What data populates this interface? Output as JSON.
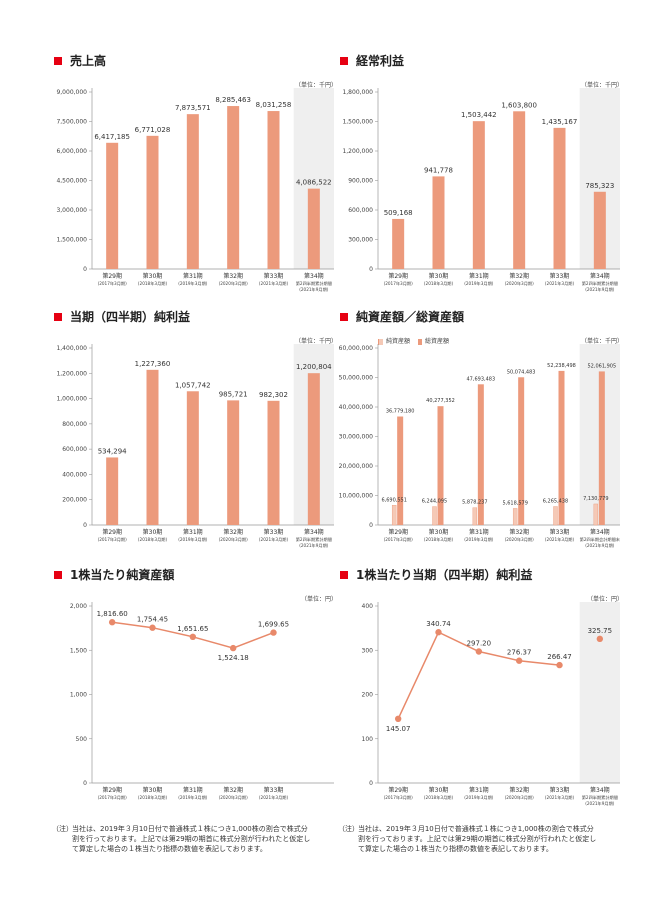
{
  "colors": {
    "accent": "#e60012",
    "bar": "#ec9a7c",
    "bar_light": "#f5c9b6",
    "line": "#e8896a",
    "shade": "#efefef",
    "axis": "#999999"
  },
  "charts": [
    {
      "id": "c1",
      "title": "売上高",
      "unit": "（単位：千円）",
      "chart_data": {
        "type": "bar",
        "categories": [
          "第29期",
          "第30期",
          "第31期",
          "第32期",
          "第33期",
          "第34期"
        ],
        "subcategories": [
          "(2017年3月期)",
          "(2018年3月期)",
          "(2019年3月期)",
          "(2020年3月期)",
          "(2021年3月期)",
          "第2四半期累計期間"
        ],
        "extra_sub": [
          "",
          "",
          "",
          "",
          "",
          "(2021年9月期)"
        ],
        "values": [
          6417185,
          6771028,
          7873571,
          8285463,
          8031258,
          4086522
        ],
        "value_labels": [
          "6,417,185",
          "6,771,028",
          "7,873,571",
          "8,285,463",
          "8,031,258",
          "4,086,522"
        ],
        "yticks": [
          "0",
          "1,500,000",
          "3,000,000",
          "4,500,000",
          "6,000,000",
          "7,500,000",
          "9,000,000"
        ],
        "ylim": [
          0,
          9000000
        ],
        "shade_last": true
      }
    },
    {
      "id": "c2",
      "title": "経常利益",
      "unit": "（単位：千円）",
      "chart_data": {
        "type": "bar",
        "categories": [
          "第29期",
          "第30期",
          "第31期",
          "第32期",
          "第33期",
          "第34期"
        ],
        "subcategories": [
          "(2017年3月期)",
          "(2018年3月期)",
          "(2019年3月期)",
          "(2020年3月期)",
          "(2021年3月期)",
          "第2四半期累計期間"
        ],
        "extra_sub": [
          "",
          "",
          "",
          "",
          "",
          "(2021年9月期)"
        ],
        "values": [
          509168,
          941778,
          1503442,
          1603800,
          1435167,
          785323
        ],
        "value_labels": [
          "509,168",
          "941,778",
          "1,503,442",
          "1,603,800",
          "1,435,167",
          "785,323"
        ],
        "yticks": [
          "0",
          "300,000",
          "600,000",
          "900,000",
          "1,200,000",
          "1,500,000",
          "1,800,000"
        ],
        "ylim": [
          0,
          1800000
        ],
        "shade_last": true
      }
    },
    {
      "id": "c3",
      "title": "当期（四半期）純利益",
      "unit": "（単位：千円）",
      "chart_data": {
        "type": "bar",
        "categories": [
          "第29期",
          "第30期",
          "第31期",
          "第32期",
          "第33期",
          "第34期"
        ],
        "subcategories": [
          "(2017年3月期)",
          "(2018年3月期)",
          "(2019年3月期)",
          "(2020年3月期)",
          "(2021年3月期)",
          "第2四半期累計期間"
        ],
        "extra_sub": [
          "",
          "",
          "",
          "",
          "",
          "(2021年9月期)"
        ],
        "values": [
          534294,
          1227360,
          1057742,
          985721,
          982302,
          1200804
        ],
        "value_labels": [
          "534,294",
          "1,227,360",
          "1,057,742",
          "985,721",
          "982,302",
          "1,200,804"
        ],
        "yticks": [
          "0",
          "200,000",
          "400,000",
          "600,000",
          "800,000",
          "1,000,000",
          "1,200,000",
          "1,400,000"
        ],
        "ylim": [
          0,
          1400000
        ],
        "shade_last": true
      }
    },
    {
      "id": "c4",
      "title": "純資産額／総資産額",
      "unit": "（単位：千円）",
      "chart_data": {
        "type": "bar",
        "categories": [
          "第29期",
          "第30期",
          "第31期",
          "第32期",
          "第33期",
          "第34期"
        ],
        "subcategories": [
          "(2017年3月期)",
          "(2018年3月期)",
          "(2019年3月期)",
          "(2020年3月期)",
          "(2021年3月期)",
          "第2四半期会計期間末"
        ],
        "extra_sub": [
          "",
          "",
          "",
          "",
          "",
          "(2021年9月期)"
        ],
        "series": [
          {
            "name": "純資産額",
            "values": [
              6690551,
              6244095,
              5878237,
              5618579,
              6265438,
              7130779
            ],
            "value_labels": [
              "6,690,551",
              "6,244,095",
              "5,878,237",
              "5,618,579",
              "6,265,438",
              "7,130,779"
            ]
          },
          {
            "name": "総資産額",
            "values": [
              36779180,
              40277352,
              47693483,
              50074483,
              52238498,
              52061905
            ],
            "value_labels": [
              "36,779,180",
              "40,277,352",
              "47,693,483",
              "50,074,483",
              "52,238,498",
              "52,061,905"
            ]
          }
        ],
        "yticks": [
          "0",
          "10,000,000",
          "20,000,000",
          "30,000,000",
          "40,000,000",
          "50,000,000",
          "60,000,000"
        ],
        "ylim": [
          0,
          60000000
        ],
        "shade_last": true
      }
    },
    {
      "id": "c5",
      "title": "1株当たり純資産額",
      "unit": "（単位：円）",
      "chart_data": {
        "type": "line",
        "categories": [
          "第29期",
          "第30期",
          "第31期",
          "第32期",
          "第33期"
        ],
        "subcategories": [
          "(2017年3月期)",
          "(2018年3月期)",
          "(2019年3月期)",
          "(2020年3月期)",
          "(2021年3月期)"
        ],
        "values": [
          1816.6,
          1754.45,
          1651.65,
          1524.18,
          1699.65
        ],
        "value_labels": [
          "1,816.60",
          "1,754.45",
          "1,651.65",
          "1,524.18",
          "1,699.65"
        ],
        "yticks": [
          "0",
          "500",
          "1,000",
          "1,500",
          "2,000"
        ],
        "ylim": [
          0,
          2000
        ],
        "slots": 6,
        "shade_last": false
      }
    },
    {
      "id": "c6",
      "title": "1株当たり当期（四半期）純利益",
      "unit": "（単位：円）",
      "chart_data": {
        "type": "line",
        "categories": [
          "第29期",
          "第30期",
          "第31期",
          "第32期",
          "第33期",
          "第34期"
        ],
        "subcategories": [
          "(2017年3月期)",
          "(2018年3月期)",
          "(2019年3月期)",
          "(2020年3月期)",
          "(2021年3月期)",
          "第2四半期累計期間"
        ],
        "extra_sub": [
          "",
          "",
          "",
          "",
          "",
          "(2021年9月期)"
        ],
        "values": [
          145.07,
          340.74,
          297.2,
          276.37,
          266.47,
          325.75
        ],
        "value_labels": [
          "145.07",
          "340.74",
          "297.20",
          "276.37",
          "266.47",
          "325.75"
        ],
        "yticks": [
          "0",
          "100",
          "200",
          "300",
          "400"
        ],
        "ylim": [
          0,
          400
        ],
        "connect_last": false,
        "shade_last": true
      }
    }
  ],
  "notes": {
    "left_label": "（注）",
    "left_text": "当社は、2019年３月10日付で普通株式１株につき1,000株の割合で株式分割を行っております。上記では第29期の期首に株式分割が行われたと仮定して算定した場合の１株当たり指標の数値を表記しております。",
    "right_label": "（注）",
    "right_text": "当社は、2019年３月10日付で普通株式１株につき1,000株の割合で株式分割を行っております。上記では第29期の期首に株式分割が行われたと仮定して算定した場合の１株当たり指標の数値を表記しております。"
  }
}
